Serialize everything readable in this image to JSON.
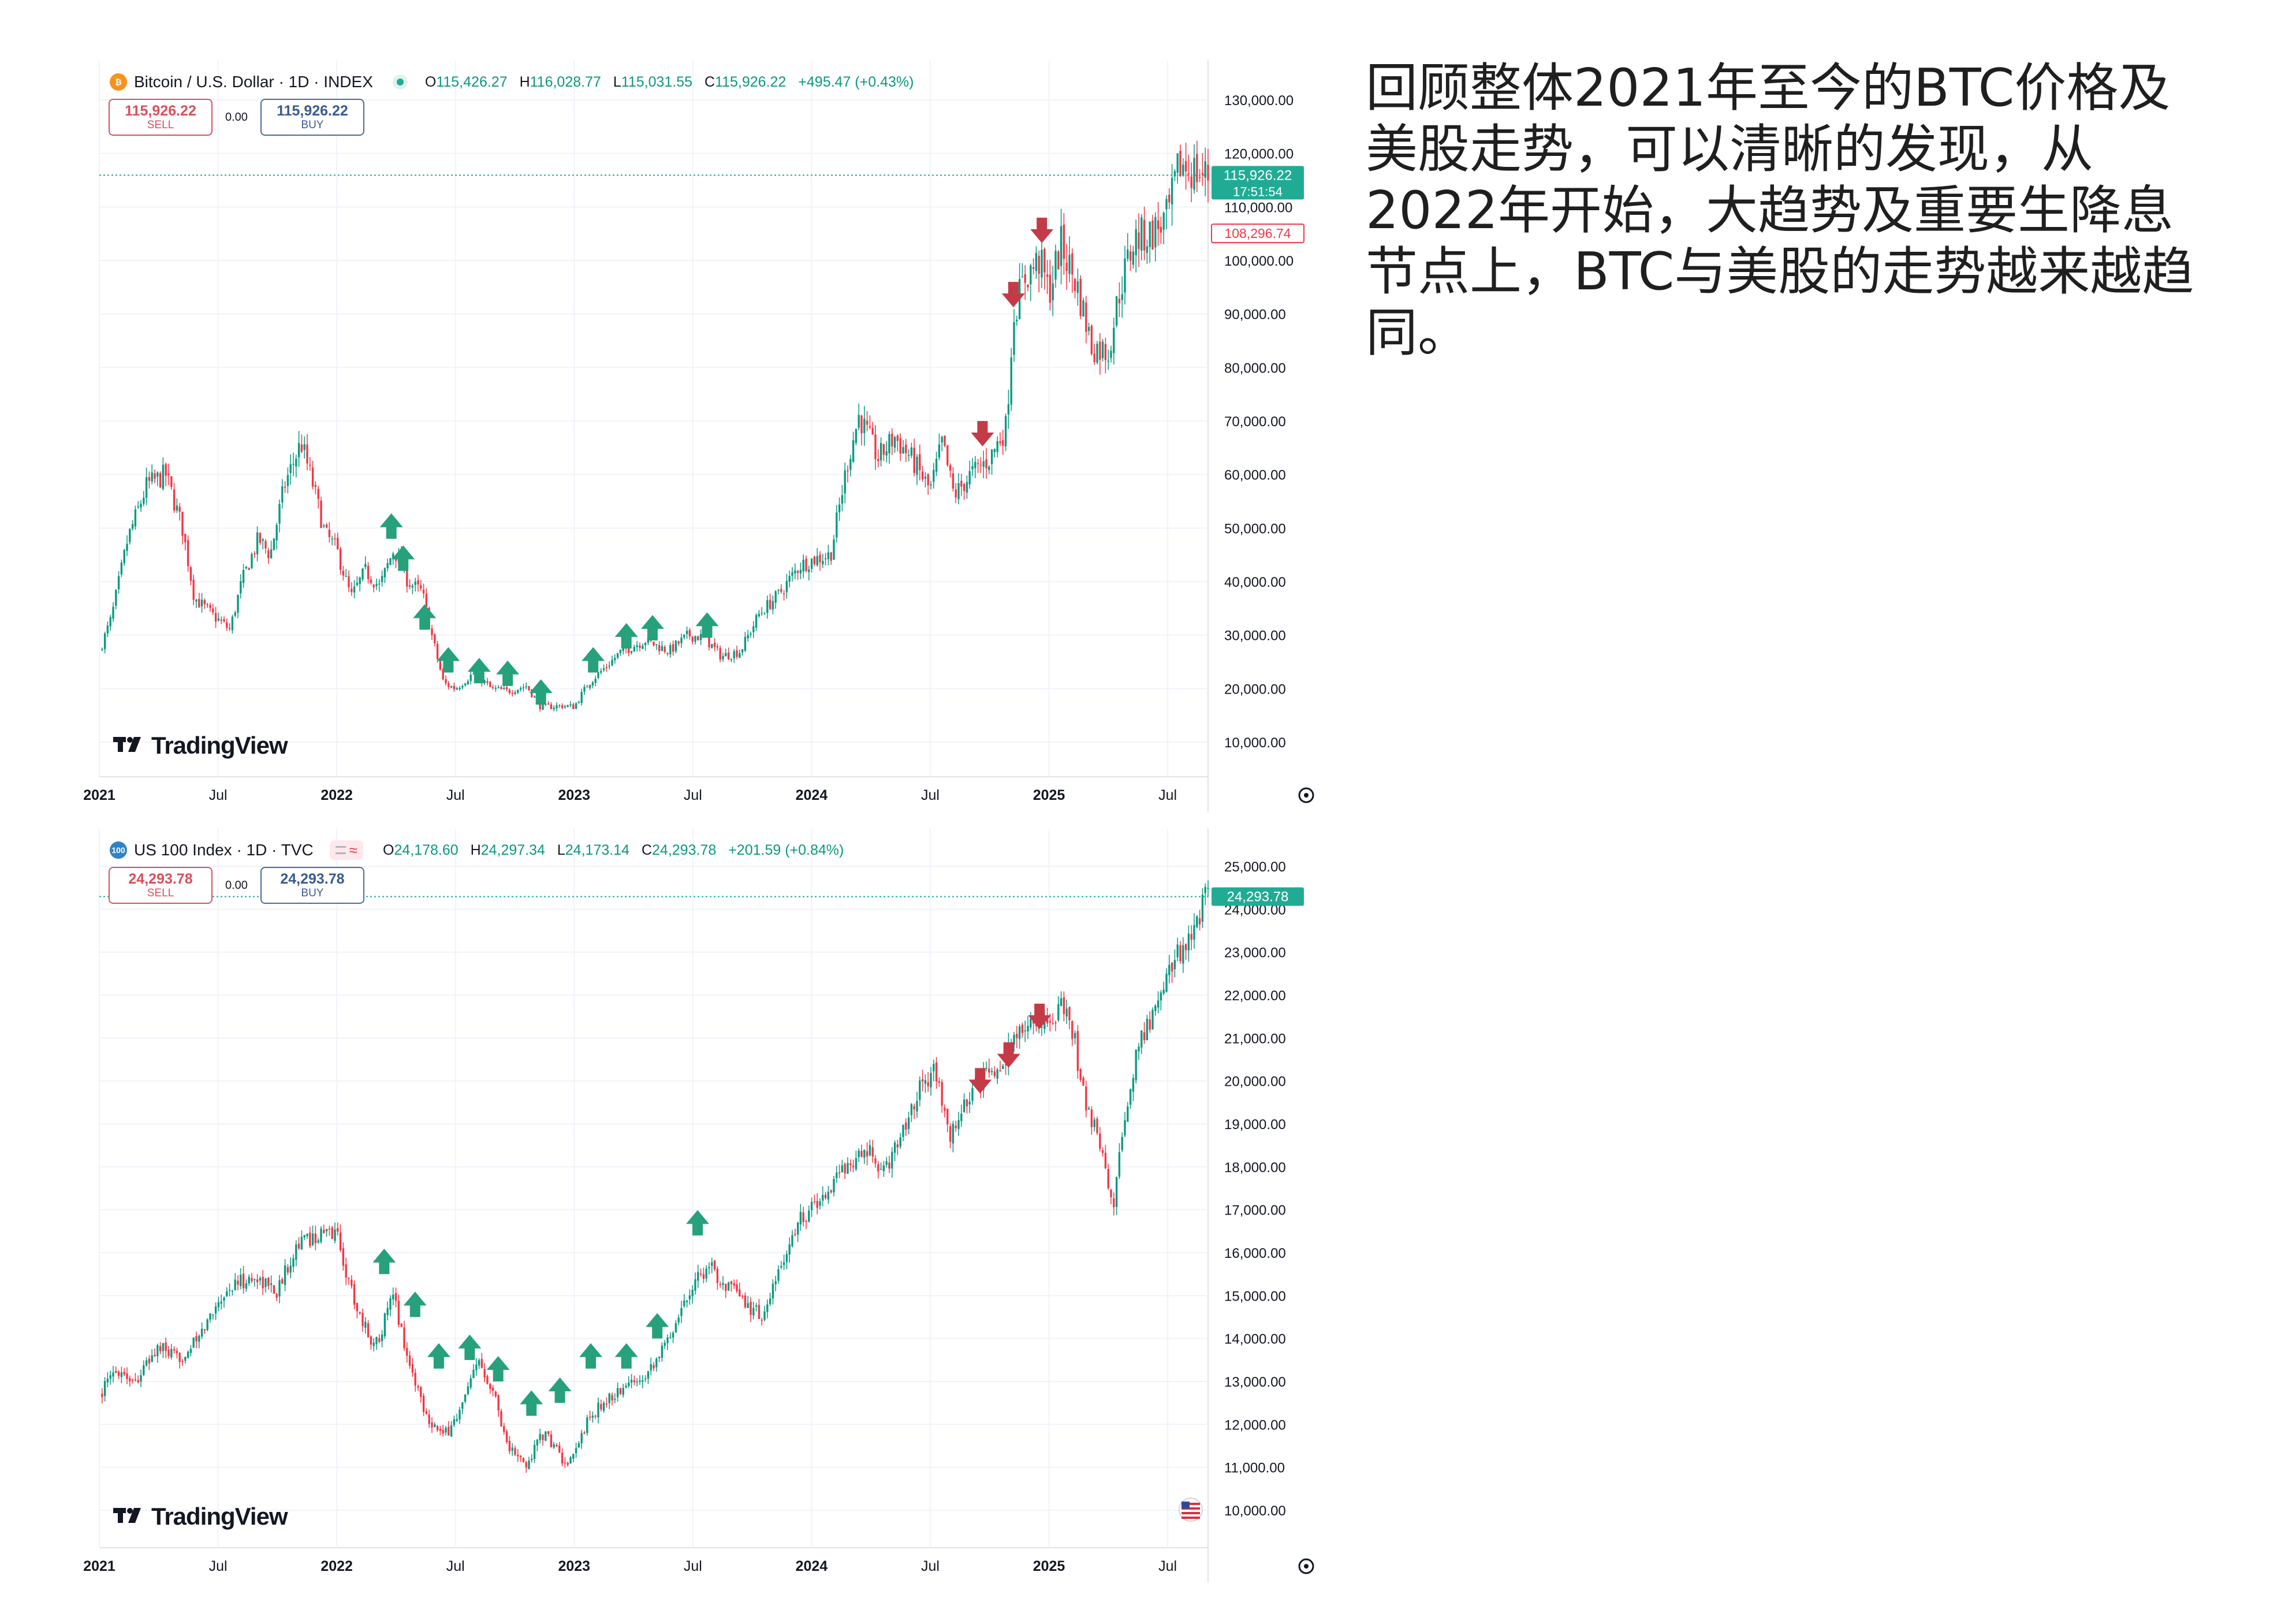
{
  "commentary": "回顾整体2021年至今的BTC价格及美股走势，可以清晰的发现，从2022年开始，大趋势及重要生降息节点上，BTC与美股的走势越来越趋同。",
  "colors": {
    "up": "#089981",
    "down": "#f23645",
    "buy_arrow": "#26a17b",
    "sell_arrow": "#c53a47",
    "grid": "#f0f3fa",
    "axis_text": "#131722"
  },
  "btc_panel": {
    "symbol_icon": "bitcoin-icon",
    "symbol": "Bitcoin / U.S. Dollar · 1D · INDEX",
    "ohlc": {
      "o_label": "O",
      "o": "115,426.27",
      "h_label": "H",
      "h": "116,028.77",
      "l_label": "L",
      "l": "115,031.55",
      "c_label": "C",
      "c": "115,926.22",
      "change": "+495.47 (+0.43%)"
    },
    "sell": {
      "price": "115,926.22",
      "label": "SELL"
    },
    "spread": "0.00",
    "buy": {
      "price": "115,926.22",
      "label": "BUY"
    },
    "logo": "TradingView",
    "price_tag": "115,926.22",
    "countdown": "17:51:54",
    "secondary_tag": "108,296.74",
    "settings_icon": "gear-icon"
  },
  "ndx_panel": {
    "symbol_icon": "nasdaq-100-icon",
    "symbol_badge": "100",
    "symbol": "US 100 Index · 1D · TVC",
    "ohlc": {
      "o_label": "O",
      "o": "24,178.60",
      "h_label": "H",
      "h": "24,297.34",
      "l_label": "L",
      "l": "24,173.14",
      "c_label": "C",
      "c": "24,293.78",
      "change": "+201.59 (+0.84%)"
    },
    "sell": {
      "price": "24,293.78",
      "label": "SELL"
    },
    "spread": "0.00",
    "buy": {
      "price": "24,293.78",
      "label": "BUY"
    },
    "logo": "TradingView",
    "price_tag": "24,293.78",
    "settings_icon": "gear-icon",
    "flag_icon": "us-flag-icon"
  },
  "chart_data": [
    {
      "type": "candlestick",
      "title": "Bitcoin / U.S. Dollar · 1D · INDEX",
      "x_range": [
        2021.0,
        2025.67
      ],
      "ylim": [
        10000,
        130000
      ],
      "y_ticks": [
        10000,
        20000,
        30000,
        40000,
        50000,
        60000,
        70000,
        80000,
        90000,
        100000,
        110000,
        120000,
        130000
      ],
      "y_tick_labels": [
        "10,000.00",
        "20,000.00",
        "30,000.00",
        "40,000.00",
        "50,000.00",
        "60,000.00",
        "70,000.00",
        "80,000.00",
        "90,000.00",
        "100,000.00",
        "110,000.00",
        "120,000.00",
        "130,000.00"
      ],
      "x_ticks": [
        {
          "x": 2021.0,
          "label": "2021",
          "bold": true
        },
        {
          "x": 2021.5,
          "label": "Jul",
          "bold": false
        },
        {
          "x": 2022.0,
          "label": "2022",
          "bold": true
        },
        {
          "x": 2022.5,
          "label": "Jul",
          "bold": false
        },
        {
          "x": 2023.0,
          "label": "2023",
          "bold": true
        },
        {
          "x": 2023.5,
          "label": "Jul",
          "bold": false
        },
        {
          "x": 2024.0,
          "label": "2024",
          "bold": true
        },
        {
          "x": 2024.5,
          "label": "Jul",
          "bold": false
        },
        {
          "x": 2025.0,
          "label": "2025",
          "bold": true
        },
        {
          "x": 2025.5,
          "label": "Jul",
          "bold": false
        }
      ],
      "grid": true,
      "last_price": 115926.22,
      "secondary_price": 108296.74,
      "price_path": [
        [
          2021.0,
          27000
        ],
        [
          2021.05,
          33000
        ],
        [
          2021.12,
          48000
        ],
        [
          2021.2,
          58000
        ],
        [
          2021.28,
          60000
        ],
        [
          2021.35,
          50000
        ],
        [
          2021.4,
          37000
        ],
        [
          2021.47,
          34000
        ],
        [
          2021.55,
          31000
        ],
        [
          2021.6,
          40000
        ],
        [
          2021.67,
          48000
        ],
        [
          2021.72,
          45000
        ],
        [
          2021.78,
          58000
        ],
        [
          2021.85,
          66000
        ],
        [
          2021.9,
          58000
        ],
        [
          2021.95,
          49000
        ],
        [
          2022.0,
          46000
        ],
        [
          2022.06,
          37000
        ],
        [
          2022.12,
          42000
        ],
        [
          2022.18,
          39000
        ],
        [
          2022.24,
          46000
        ],
        [
          2022.3,
          40000
        ],
        [
          2022.36,
          38000
        ],
        [
          2022.4,
          30000
        ],
        [
          2022.45,
          21000
        ],
        [
          2022.5,
          20000
        ],
        [
          2022.58,
          23000
        ],
        [
          2022.65,
          20000
        ],
        [
          2022.72,
          19500
        ],
        [
          2022.8,
          20500
        ],
        [
          2022.86,
          16500
        ],
        [
          2022.95,
          16800
        ],
        [
          2023.0,
          16600
        ],
        [
          2023.06,
          21000
        ],
        [
          2023.12,
          23500
        ],
        [
          2023.2,
          27000
        ],
        [
          2023.3,
          29000
        ],
        [
          2023.4,
          27000
        ],
        [
          2023.48,
          30000
        ],
        [
          2023.55,
          29500
        ],
        [
          2023.62,
          26000
        ],
        [
          2023.7,
          27000
        ],
        [
          2023.78,
          34000
        ],
        [
          2023.86,
          37500
        ],
        [
          2023.95,
          43000
        ],
        [
          2024.0,
          44000
        ],
        [
          2024.08,
          45000
        ],
        [
          2024.15,
          62000
        ],
        [
          2024.2,
          71000
        ],
        [
          2024.28,
          63000
        ],
        [
          2024.35,
          67000
        ],
        [
          2024.42,
          63000
        ],
        [
          2024.5,
          57000
        ],
        [
          2024.55,
          66000
        ],
        [
          2024.6,
          56000
        ],
        [
          2024.67,
          60000
        ],
        [
          2024.75,
          63000
        ],
        [
          2024.82,
          69000
        ],
        [
          2024.85,
          90000
        ],
        [
          2024.9,
          97000
        ],
        [
          2024.96,
          100000
        ],
        [
          2025.0,
          94000
        ],
        [
          2025.05,
          103000
        ],
        [
          2025.12,
          95000
        ],
        [
          2025.18,
          84000
        ],
        [
          2025.25,
          83000
        ],
        [
          2025.3,
          95000
        ],
        [
          2025.36,
          104000
        ],
        [
          2025.43,
          105000
        ],
        [
          2025.5,
          108000
        ],
        [
          2025.55,
          118000
        ],
        [
          2025.6,
          117000
        ],
        [
          2025.65,
          115926
        ]
      ],
      "markers": [
        {
          "x": 2022.23,
          "y": 48000,
          "dir": "up"
        },
        {
          "x": 2022.28,
          "y": 42000,
          "dir": "up"
        },
        {
          "x": 2022.37,
          "y": 31000,
          "dir": "up"
        },
        {
          "x": 2022.47,
          "y": 23000,
          "dir": "up"
        },
        {
          "x": 2022.6,
          "y": 21000,
          "dir": "up"
        },
        {
          "x": 2022.72,
          "y": 20500,
          "dir": "up"
        },
        {
          "x": 2022.86,
          "y": 17000,
          "dir": "up"
        },
        {
          "x": 2023.08,
          "y": 23000,
          "dir": "up"
        },
        {
          "x": 2023.22,
          "y": 27500,
          "dir": "up"
        },
        {
          "x": 2023.33,
          "y": 29000,
          "dir": "up"
        },
        {
          "x": 2023.56,
          "y": 29500,
          "dir": "up"
        },
        {
          "x": 2024.72,
          "y": 70000,
          "dir": "down"
        },
        {
          "x": 2024.85,
          "y": 96000,
          "dir": "down"
        },
        {
          "x": 2024.97,
          "y": 108000,
          "dir": "down"
        }
      ]
    },
    {
      "type": "candlestick",
      "title": "US 100 Index · 1D · TVC",
      "x_range": [
        2021.0,
        2025.67
      ],
      "ylim": [
        10000,
        25000
      ],
      "y_ticks": [
        10000,
        11000,
        12000,
        13000,
        14000,
        15000,
        16000,
        17000,
        18000,
        19000,
        20000,
        21000,
        22000,
        23000,
        24000,
        25000
      ],
      "y_tick_labels": [
        "10,000.00",
        "11,000.00",
        "12,000.00",
        "13,000.00",
        "14,000.00",
        "15,000.00",
        "16,000.00",
        "17,000.00",
        "18,000.00",
        "19,000.00",
        "20,000.00",
        "21,000.00",
        "22,000.00",
        "23,000.00",
        "24,000.00",
        "25,000.00"
      ],
      "x_ticks": [
        {
          "x": 2021.0,
          "label": "2021",
          "bold": true
        },
        {
          "x": 2021.5,
          "label": "Jul",
          "bold": false
        },
        {
          "x": 2022.0,
          "label": "2022",
          "bold": true
        },
        {
          "x": 2022.5,
          "label": "Jul",
          "bold": false
        },
        {
          "x": 2023.0,
          "label": "2023",
          "bold": true
        },
        {
          "x": 2023.5,
          "label": "Jul",
          "bold": false
        },
        {
          "x": 2024.0,
          "label": "2024",
          "bold": true
        },
        {
          "x": 2024.5,
          "label": "Jul",
          "bold": false
        },
        {
          "x": 2025.0,
          "label": "2025",
          "bold": true
        },
        {
          "x": 2025.5,
          "label": "Jul",
          "bold": false
        }
      ],
      "grid": true,
      "last_price": 24293.78,
      "price_path": [
        [
          2021.0,
          12700
        ],
        [
          2021.08,
          13300
        ],
        [
          2021.15,
          13000
        ],
        [
          2021.25,
          13800
        ],
        [
          2021.33,
          13500
        ],
        [
          2021.42,
          14000
        ],
        [
          2021.5,
          14900
        ],
        [
          2021.58,
          15300
        ],
        [
          2021.67,
          15400
        ],
        [
          2021.75,
          15100
        ],
        [
          2021.83,
          16200
        ],
        [
          2021.92,
          16400
        ],
        [
          2022.0,
          16500
        ],
        [
          2022.04,
          15500
        ],
        [
          2022.1,
          14500
        ],
        [
          2022.16,
          13800
        ],
        [
          2022.24,
          15000
        ],
        [
          2022.3,
          13500
        ],
        [
          2022.38,
          12200
        ],
        [
          2022.45,
          11700
        ],
        [
          2022.52,
          12300
        ],
        [
          2022.6,
          13500
        ],
        [
          2022.66,
          12800
        ],
        [
          2022.72,
          11500
        ],
        [
          2022.8,
          11000
        ],
        [
          2022.86,
          11800
        ],
        [
          2022.92,
          11500
        ],
        [
          2022.97,
          10900
        ],
        [
          2023.05,
          12000
        ],
        [
          2023.12,
          12500
        ],
        [
          2023.2,
          12800
        ],
        [
          2023.3,
          13200
        ],
        [
          2023.38,
          13800
        ],
        [
          2023.45,
          14700
        ],
        [
          2023.52,
          15500
        ],
        [
          2023.58,
          15600
        ],
        [
          2023.65,
          15200
        ],
        [
          2023.72,
          14800
        ],
        [
          2023.8,
          14500
        ],
        [
          2023.88,
          15800
        ],
        [
          2023.95,
          16800
        ],
        [
          2024.05,
          17300
        ],
        [
          2024.15,
          18100
        ],
        [
          2024.25,
          18300
        ],
        [
          2024.3,
          17800
        ],
        [
          2024.38,
          18800
        ],
        [
          2024.45,
          19800
        ],
        [
          2024.52,
          20300
        ],
        [
          2024.58,
          18600
        ],
        [
          2024.63,
          19300
        ],
        [
          2024.7,
          19900
        ],
        [
          2024.78,
          20300
        ],
        [
          2024.85,
          20900
        ],
        [
          2024.92,
          21400
        ],
        [
          2024.98,
          21300
        ],
        [
          2025.05,
          21700
        ],
        [
          2025.1,
          21200
        ],
        [
          2025.15,
          19500
        ],
        [
          2025.22,
          18500
        ],
        [
          2025.27,
          17000
        ],
        [
          2025.32,
          19200
        ],
        [
          2025.38,
          20900
        ],
        [
          2025.45,
          21700
        ],
        [
          2025.52,
          22800
        ],
        [
          2025.6,
          23400
        ],
        [
          2025.66,
          24290
        ]
      ],
      "markers": [
        {
          "x": 2022.2,
          "y": 15500,
          "dir": "up"
        },
        {
          "x": 2022.33,
          "y": 14500,
          "dir": "up"
        },
        {
          "x": 2022.43,
          "y": 13300,
          "dir": "up"
        },
        {
          "x": 2022.56,
          "y": 13500,
          "dir": "up"
        },
        {
          "x": 2022.68,
          "y": 13000,
          "dir": "up"
        },
        {
          "x": 2022.82,
          "y": 12200,
          "dir": "up"
        },
        {
          "x": 2022.94,
          "y": 12500,
          "dir": "up"
        },
        {
          "x": 2023.07,
          "y": 13300,
          "dir": "up"
        },
        {
          "x": 2023.22,
          "y": 13300,
          "dir": "up"
        },
        {
          "x": 2023.35,
          "y": 14000,
          "dir": "up"
        },
        {
          "x": 2023.52,
          "y": 16400,
          "dir": "up"
        },
        {
          "x": 2024.71,
          "y": 20300,
          "dir": "down"
        },
        {
          "x": 2024.83,
          "y": 20900,
          "dir": "down"
        },
        {
          "x": 2024.96,
          "y": 21800,
          "dir": "down"
        }
      ]
    }
  ]
}
